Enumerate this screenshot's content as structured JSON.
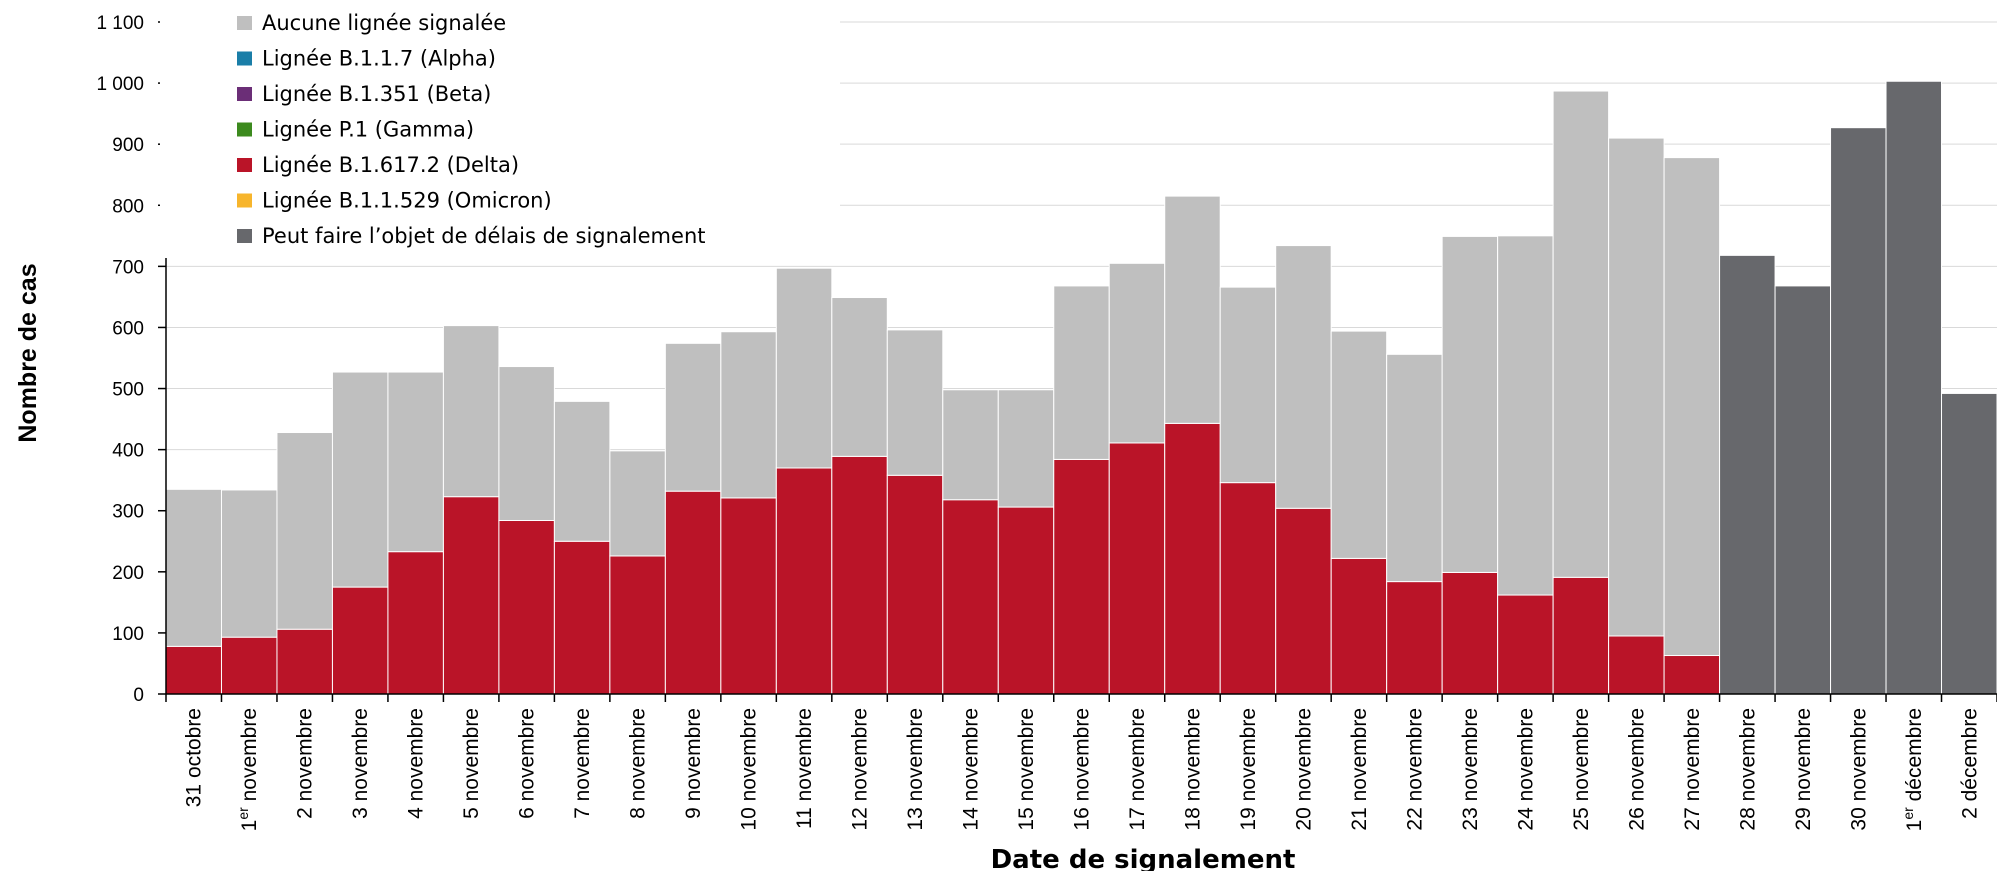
{
  "chart_data": {
    "type": "bar",
    "stacked": true,
    "title": "",
    "xlabel": "Date de signalement",
    "ylabel": "Nombre de cas",
    "ylim": [
      0,
      1100
    ],
    "yticks": [
      0,
      100,
      200,
      300,
      400,
      500,
      600,
      700,
      800,
      900,
      1000,
      1100
    ],
    "ytick_labels": [
      "0",
      "100",
      "200",
      "300",
      "400",
      "500",
      "600",
      "700",
      "800",
      "900",
      "1 000",
      "1 100"
    ],
    "grid": true,
    "legend_position": "top-left",
    "categories": [
      "31 octobre",
      "1er novembre",
      "2 novembre",
      "3 novembre",
      "4 novembre",
      "5 novembre",
      "6 novembre",
      "7 novembre",
      "8 novembre",
      "9 novembre",
      "10 novembre",
      "11 novembre",
      "12 novembre",
      "13 novembre",
      "14 novembre",
      "15 novembre",
      "16 novembre",
      "17 novembre",
      "18 novembre",
      "19 novembre",
      "20 novembre",
      "21 novembre",
      "22 novembre",
      "23 novembre",
      "24 novembre",
      "25 novembre",
      "26 novembre",
      "27 novembre",
      "28 novembre",
      "29 novembre",
      "30 novembre",
      "1er décembre",
      "2 décembre"
    ],
    "series": [
      {
        "name": "Lignée B.1.617.2 (Delta)",
        "color": "#BA1428",
        "values": [
          78,
          93,
          106,
          175,
          233,
          323,
          284,
          250,
          226,
          332,
          321,
          370,
          389,
          358,
          318,
          306,
          384,
          411,
          443,
          346,
          304,
          222,
          184,
          199,
          162,
          191,
          95,
          63,
          0,
          0,
          0,
          0,
          0
        ]
      },
      {
        "name": "Lignée B.1.1.529 (Omicron)",
        "color": "#F7B52C",
        "values": [
          0,
          0,
          0,
          0,
          0,
          0,
          0,
          0,
          0,
          0,
          0,
          0,
          0,
          0,
          0,
          0,
          0,
          0,
          0,
          0,
          0,
          0,
          0,
          0,
          0,
          0,
          0,
          0,
          0,
          0,
          0,
          0,
          0
        ]
      },
      {
        "name": "Lignée P.1 (Gamma)",
        "color": "#3C8A1E",
        "values": [
          0,
          0,
          0,
          0,
          0,
          0,
          0,
          0,
          0,
          0,
          0,
          0,
          0,
          0,
          0,
          0,
          0,
          0,
          0,
          0,
          0,
          0,
          0,
          0,
          0,
          0,
          0,
          0,
          0,
          0,
          0,
          0,
          0
        ]
      },
      {
        "name": "Lignée B.1.351 (Beta)",
        "color": "#6B2E77",
        "values": [
          0,
          0,
          0,
          0,
          0,
          0,
          0,
          0,
          0,
          0,
          0,
          0,
          0,
          0,
          0,
          0,
          0,
          0,
          0,
          0,
          0,
          0,
          0,
          0,
          0,
          0,
          0,
          0,
          0,
          0,
          0,
          0,
          0
        ]
      },
      {
        "name": "Lignée B.1.1.7 (Alpha)",
        "color": "#1A7EA8",
        "values": [
          0,
          0,
          0,
          0,
          0,
          0,
          0,
          0,
          0,
          0,
          0,
          0,
          0,
          0,
          0,
          0,
          0,
          0,
          0,
          0,
          0,
          0,
          0,
          0,
          0,
          0,
          0,
          0,
          0,
          0,
          0,
          0,
          0
        ]
      },
      {
        "name": "Aucune lignée signalée",
        "color": "#BFBFBF",
        "values": [
          257,
          241,
          322,
          352,
          294,
          280,
          252,
          229,
          172,
          242,
          272,
          327,
          260,
          238,
          180,
          192,
          284,
          294,
          372,
          320,
          430,
          372,
          372,
          550,
          588,
          796,
          815,
          815,
          0,
          0,
          0,
          0,
          0
        ]
      },
      {
        "name": "Peut faire l’objet de délais de signalement",
        "color": "#67686C",
        "values": [
          0,
          0,
          0,
          0,
          0,
          0,
          0,
          0,
          0,
          0,
          0,
          0,
          0,
          0,
          0,
          0,
          0,
          0,
          0,
          0,
          0,
          0,
          0,
          0,
          0,
          0,
          0,
          0,
          718,
          668,
          927,
          1003,
          492
        ]
      }
    ],
    "legend_order": [
      "Aucune lignée signalée",
      "Lignée B.1.1.7 (Alpha)",
      "Lignée B.1.351 (Beta)",
      "Lignée P.1 (Gamma)",
      "Lignée B.1.617.2 (Delta)",
      "Lignée B.1.1.529 (Omicron)",
      "Peut faire l’objet de délais de signalement"
    ]
  }
}
